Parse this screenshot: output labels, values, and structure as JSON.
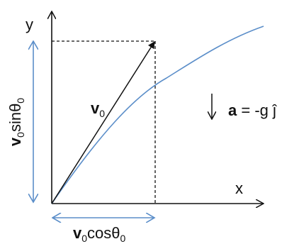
{
  "diagram": {
    "x_axis_label": "x",
    "y_axis_label": "y",
    "velocity_vector_label": {
      "symbol": "v",
      "subscript": "0"
    },
    "vertical_component_label": {
      "symbol": "v",
      "subscript": "0",
      "func": "sinθ",
      "func_subscript": "0"
    },
    "horizontal_component_label": {
      "symbol": "v",
      "subscript": "0",
      "func": "cosθ",
      "func_subscript": "0"
    },
    "acceleration_label": {
      "symbol": "a",
      "rest": " = -g ĵ"
    },
    "colors": {
      "axes": "#111111",
      "trajectory": "#5b8ec9",
      "component_arrows": "#5b8ec9",
      "dashed_guides": "#111111",
      "vector": "#111111"
    }
  }
}
